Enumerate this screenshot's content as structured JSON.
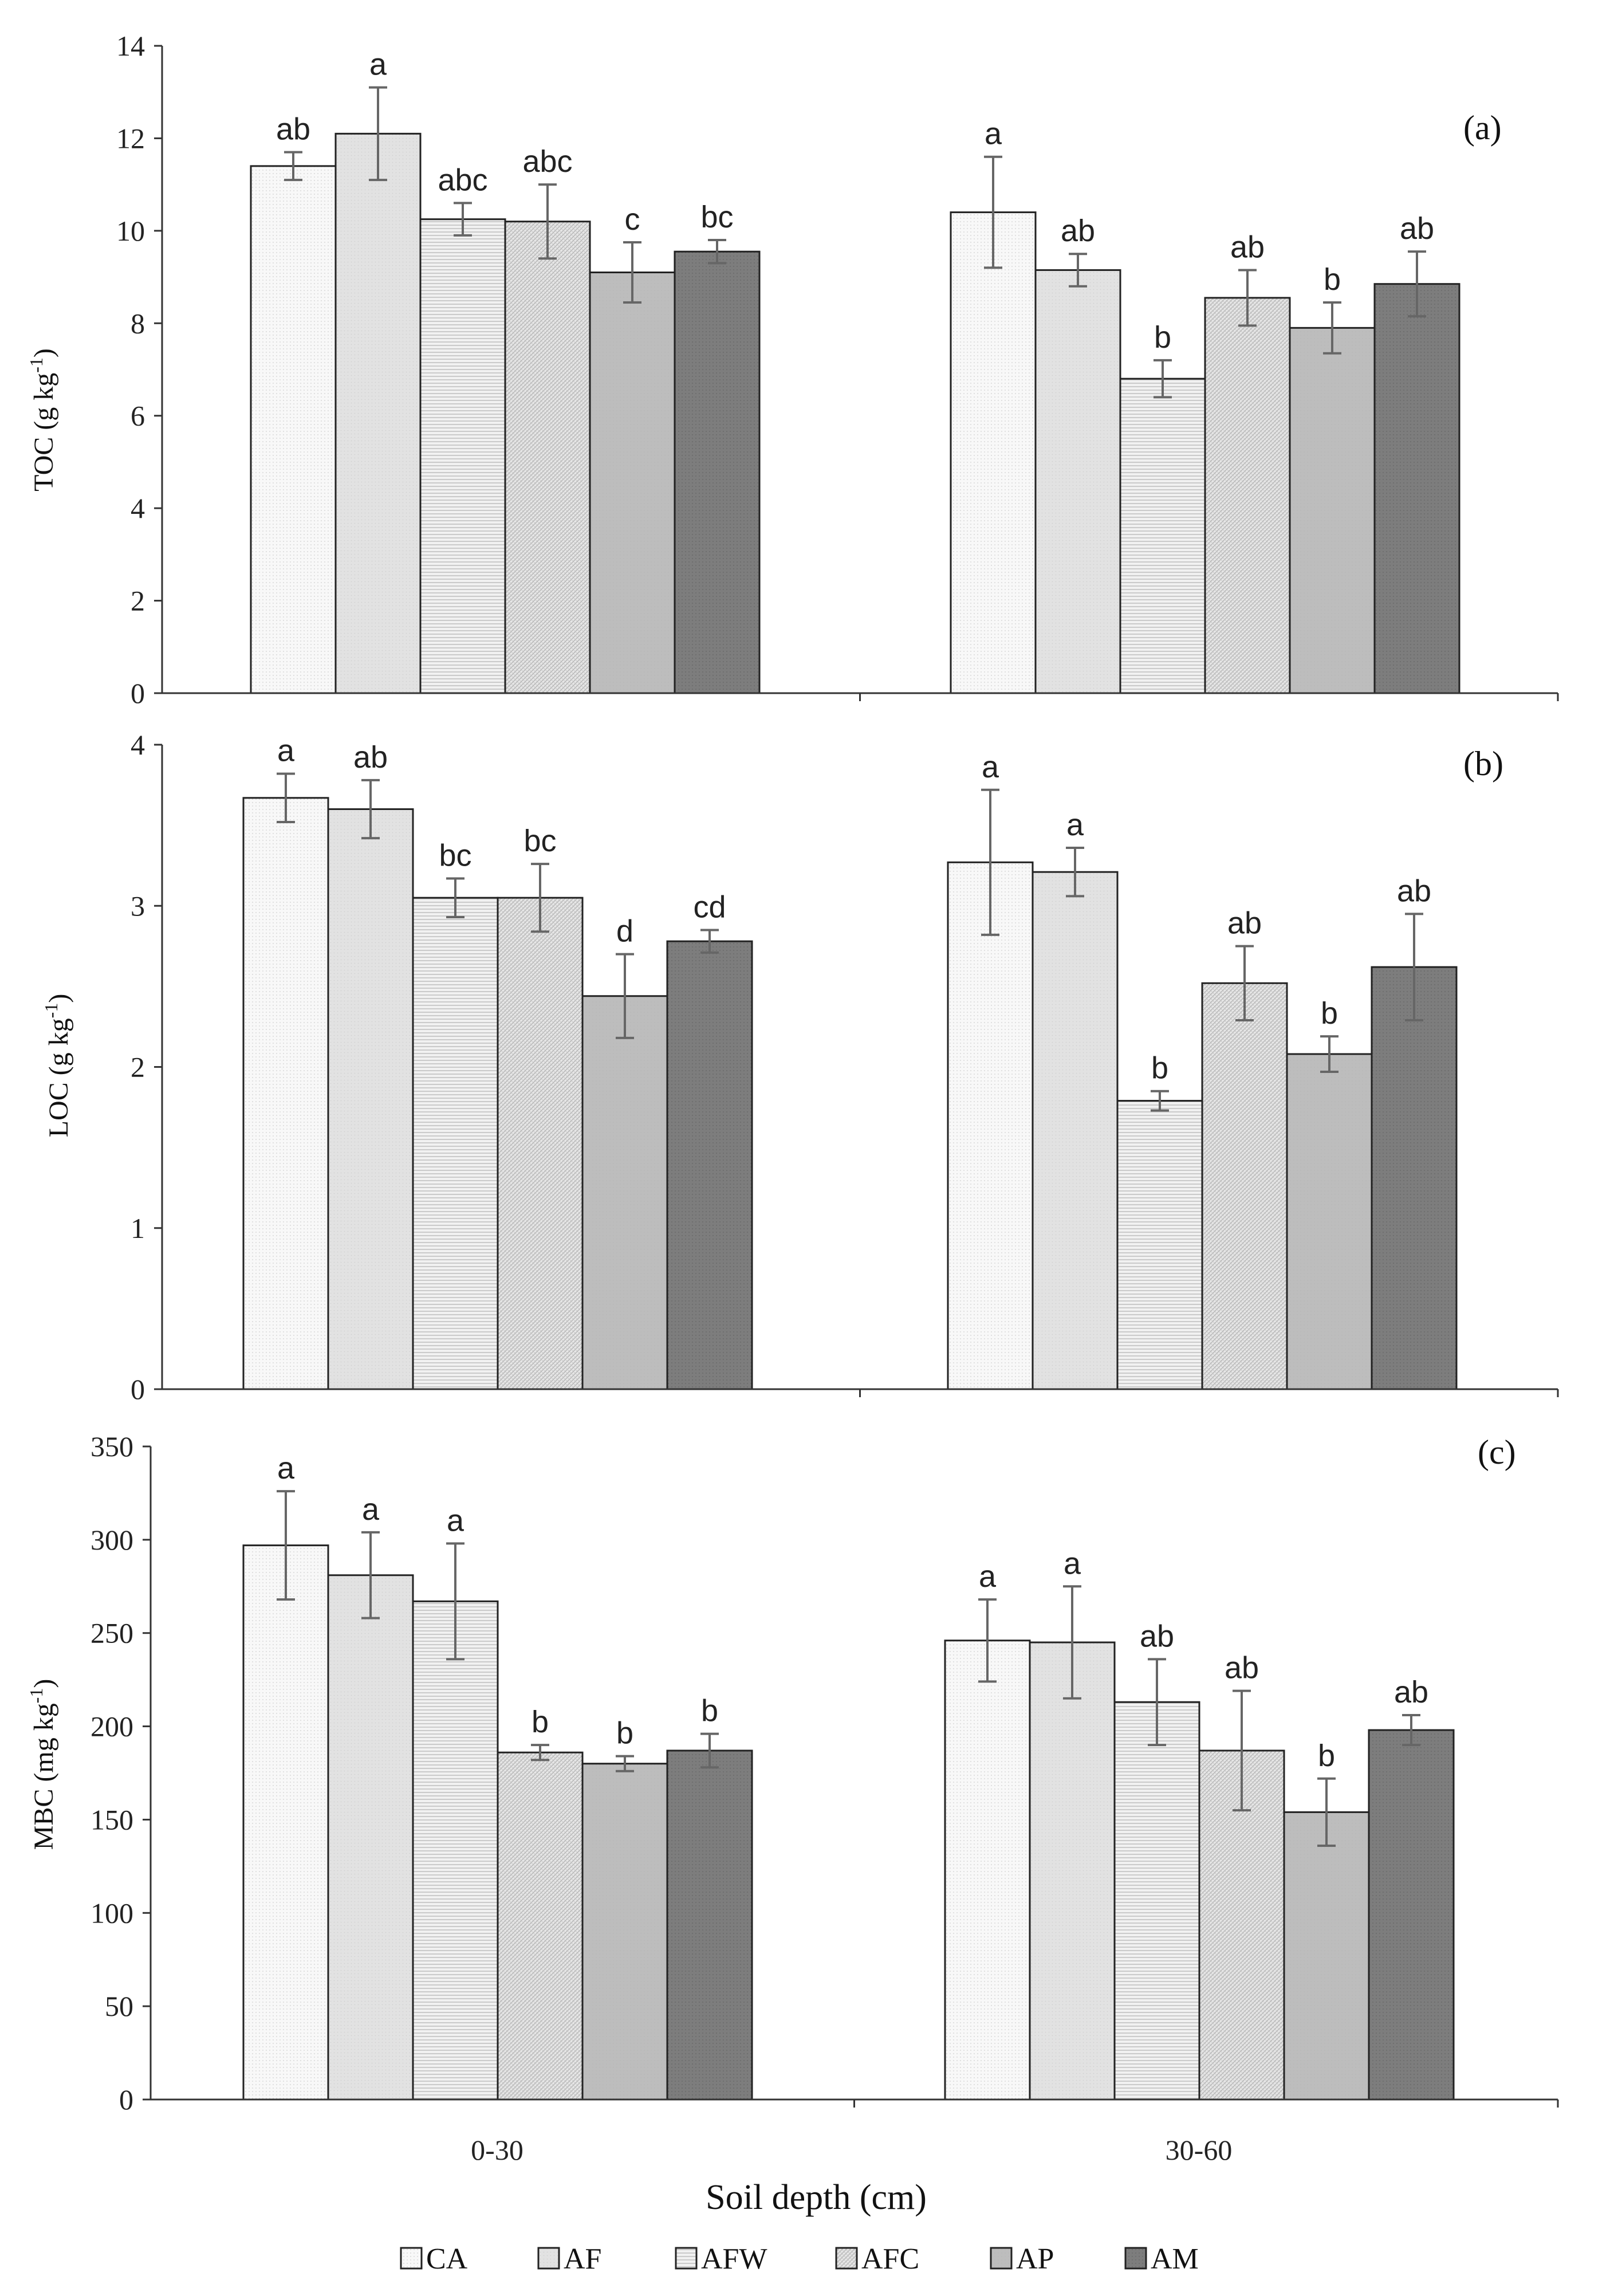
{
  "chart_data": {
    "type": "bar",
    "xlabel": "Soil depth (cm)",
    "categories": [
      "0-30",
      "30-60"
    ],
    "legend": {
      "entries": [
        {
          "name": "CA",
          "fill": "#f7f7f7"
        },
        {
          "name": "AF",
          "fill": "#e3e3e3"
        },
        {
          "name": "AFW",
          "fill": "#ececec"
        },
        {
          "name": "AFC",
          "fill": "#dadada"
        },
        {
          "name": "AP",
          "fill": "#bebebe"
        },
        {
          "name": "AM",
          "fill": "#7a7a7a"
        }
      ],
      "position": "bottom"
    },
    "panels": [
      {
        "label": "(a)",
        "ylabel_main": "TOC (g kg",
        "ylabel_sup": "-1",
        "ylabel_end": ")",
        "ylim": [
          0,
          14
        ],
        "yticks": [
          "0",
          "2",
          "4",
          "6",
          "8",
          "10",
          "12",
          "14"
        ],
        "series": [
          {
            "name": "CA",
            "values": [
              11.4,
              10.4
            ],
            "errors": [
              0.3,
              1.2
            ],
            "letters": [
              "ab",
              "a"
            ]
          },
          {
            "name": "AF",
            "values": [
              12.1,
              9.15
            ],
            "errors": [
              1.0,
              0.35
            ],
            "letters": [
              "a",
              "ab"
            ]
          },
          {
            "name": "AFW",
            "values": [
              10.25,
              6.8
            ],
            "errors": [
              0.35,
              0.4
            ],
            "letters": [
              "abc",
              "b"
            ]
          },
          {
            "name": "AFC",
            "values": [
              10.2,
              8.55
            ],
            "errors": [
              0.8,
              0.6
            ],
            "letters": [
              "abc",
              "ab"
            ]
          },
          {
            "name": "AP",
            "values": [
              9.1,
              7.9
            ],
            "errors": [
              0.65,
              0.55
            ],
            "letters": [
              "c",
              "b"
            ]
          },
          {
            "name": "AM",
            "values": [
              9.55,
              8.85
            ],
            "errors": [
              0.25,
              0.7
            ],
            "letters": [
              "bc",
              "ab"
            ]
          }
        ]
      },
      {
        "label": "(b)",
        "ylabel_main": "LOC (g kg",
        "ylabel_sup": "-1",
        "ylabel_end": ")",
        "ylim": [
          0,
          4
        ],
        "yticks": [
          "0",
          "1",
          "2",
          "3",
          "4"
        ],
        "series": [
          {
            "name": "CA",
            "values": [
              3.67,
              3.27
            ],
            "errors": [
              0.15,
              0.45
            ],
            "letters": [
              "a",
              "a"
            ]
          },
          {
            "name": "AF",
            "values": [
              3.6,
              3.21
            ],
            "errors": [
              0.18,
              0.15
            ],
            "letters": [
              "ab",
              "a"
            ]
          },
          {
            "name": "AFW",
            "values": [
              3.05,
              1.79
            ],
            "errors": [
              0.12,
              0.06
            ],
            "letters": [
              "bc",
              "b"
            ]
          },
          {
            "name": "AFC",
            "values": [
              3.05,
              2.52
            ],
            "errors": [
              0.21,
              0.23
            ],
            "letters": [
              "bc",
              "ab"
            ]
          },
          {
            "name": "AP",
            "values": [
              2.44,
              2.08
            ],
            "errors": [
              0.26,
              0.11
            ],
            "letters": [
              "d",
              "b"
            ]
          },
          {
            "name": "AM",
            "values": [
              2.78,
              2.62
            ],
            "errors": [
              0.07,
              0.33
            ],
            "letters": [
              "cd",
              "ab"
            ]
          }
        ]
      },
      {
        "label": "(c)",
        "ylabel_main": "MBC (mg kg",
        "ylabel_sup": "-1",
        "ylabel_end": ")",
        "ylim": [
          0,
          350
        ],
        "yticks": [
          "0",
          "50",
          "100",
          "150",
          "200",
          "250",
          "300",
          "350"
        ],
        "series": [
          {
            "name": "CA",
            "values": [
              297,
              246
            ],
            "errors": [
              29,
              22
            ],
            "letters": [
              "a",
              "a"
            ]
          },
          {
            "name": "AF",
            "values": [
              281,
              245
            ],
            "errors": [
              23,
              30
            ],
            "letters": [
              "a",
              "a"
            ]
          },
          {
            "name": "AFW",
            "values": [
              267,
              213
            ],
            "errors": [
              31,
              23
            ],
            "letters": [
              "a",
              "ab"
            ]
          },
          {
            "name": "AFC",
            "values": [
              186,
              187
            ],
            "errors": [
              4,
              32
            ],
            "letters": [
              "b",
              "ab"
            ]
          },
          {
            "name": "AP",
            "values": [
              180,
              154
            ],
            "errors": [
              4,
              18
            ],
            "letters": [
              "b",
              "b"
            ]
          },
          {
            "name": "AM",
            "values": [
              187,
              198
            ],
            "errors": [
              9,
              8
            ],
            "letters": [
              "b",
              "ab"
            ]
          }
        ]
      }
    ]
  }
}
